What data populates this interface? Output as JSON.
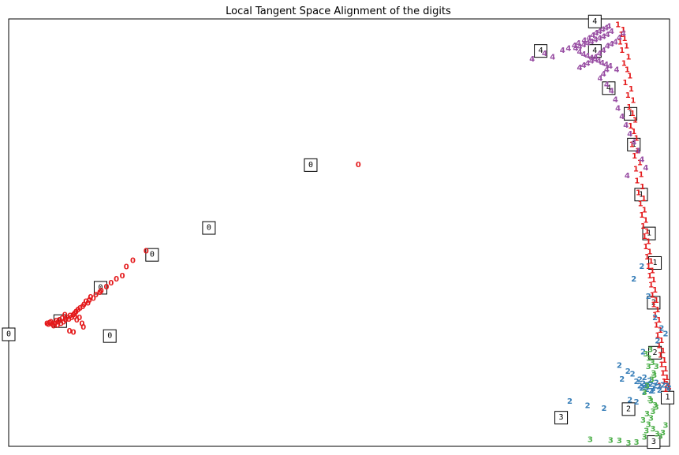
{
  "chart_data": {
    "type": "scatter",
    "title": "Local Tangent Space Alignment of the digits",
    "xlabel": "",
    "ylabel": "",
    "xlim": [
      0,
      1
    ],
    "ylim": [
      0,
      1
    ],
    "ticks": "none",
    "grid": false,
    "legend": "none",
    "marker": "digit-label",
    "series": [
      {
        "label": "0",
        "color": "#e41a1c",
        "x": [
          0.529,
          0.208,
          0.188,
          0.178,
          0.172,
          0.163,
          0.155,
          0.148,
          0.14,
          0.138,
          0.132,
          0.128,
          0.124,
          0.122,
          0.12,
          0.117,
          0.114,
          0.112,
          0.108,
          0.105,
          0.102,
          0.1,
          0.098,
          0.095,
          0.093,
          0.091,
          0.088,
          0.086,
          0.085,
          0.083,
          0.081,
          0.079,
          0.077,
          0.075,
          0.074,
          0.072,
          0.07,
          0.068,
          0.066,
          0.064,
          0.062,
          0.06,
          0.058,
          0.1,
          0.103,
          0.107,
          0.111,
          0.113,
          0.098,
          0.092
        ],
        "y": [
          0.658,
          0.456,
          0.434,
          0.419,
          0.398,
          0.39,
          0.381,
          0.372,
          0.363,
          0.359,
          0.353,
          0.345,
          0.348,
          0.34,
          0.334,
          0.338,
          0.33,
          0.326,
          0.322,
          0.318,
          0.314,
          0.31,
          0.306,
          0.3,
          0.304,
          0.296,
          0.3,
          0.294,
          0.306,
          0.29,
          0.298,
          0.286,
          0.294,
          0.29,
          0.282,
          0.292,
          0.286,
          0.28,
          0.284,
          0.29,
          0.288,
          0.284,
          0.286,
          0.302,
          0.294,
          0.3,
          0.286,
          0.278,
          0.266,
          0.268
        ]
      },
      {
        "label": "1",
        "color": "#e41a1c",
        "x": [
          0.922,
          0.93,
          0.927,
          0.932,
          0.925,
          0.935,
          0.928,
          0.938,
          0.931,
          0.936,
          0.94,
          0.933,
          0.942,
          0.937,
          0.945,
          0.939,
          0.944,
          0.948,
          0.941,
          0.946,
          0.95,
          0.943,
          0.952,
          0.947,
          0.955,
          0.949,
          0.957,
          0.951,
          0.959,
          0.953,
          0.961,
          0.956,
          0.962,
          0.958,
          0.964,
          0.96,
          0.966,
          0.962,
          0.968,
          0.964,
          0.97,
          0.966,
          0.972,
          0.968,
          0.974,
          0.97,
          0.976,
          0.972,
          0.978,
          0.974,
          0.98,
          0.976,
          0.982,
          0.978,
          0.984,
          0.98,
          0.986,
          0.982,
          0.988,
          0.984,
          0.99,
          0.986,
          0.992,
          0.988,
          0.994,
          0.99,
          0.996,
          0.992,
          0.998,
          0.994,
          0.985,
          0.992,
          0.996,
          0.999
        ],
        "y": [
          0.985,
          0.973,
          0.962,
          0.953,
          0.945,
          0.935,
          0.925,
          0.91,
          0.895,
          0.88,
          0.865,
          0.85,
          0.835,
          0.82,
          0.808,
          0.792,
          0.778,
          0.762,
          0.748,
          0.735,
          0.72,
          0.705,
          0.69,
          0.678,
          0.662,
          0.648,
          0.635,
          0.62,
          0.606,
          0.592,
          0.578,
          0.566,
          0.552,
          0.54,
          0.528,
          0.514,
          0.502,
          0.49,
          0.478,
          0.466,
          0.454,
          0.442,
          0.432,
          0.42,
          0.41,
          0.398,
          0.388,
          0.376,
          0.364,
          0.352,
          0.34,
          0.33,
          0.318,
          0.306,
          0.294,
          0.282,
          0.27,
          0.258,
          0.246,
          0.234,
          0.222,
          0.212,
          0.2,
          0.19,
          0.18,
          0.17,
          0.16,
          0.15,
          0.14,
          0.132,
          0.14,
          0.15,
          0.145,
          0.138
        ]
      },
      {
        "label": "2",
        "color": "#377eb8",
        "x": [
          0.849,
          0.876,
          0.901,
          0.924,
          0.937,
          0.928,
          0.944,
          0.95,
          0.955,
          0.958,
          0.962,
          0.966,
          0.972,
          0.978,
          0.984,
          0.99,
          0.996,
          0.999,
          0.985,
          0.975,
          0.968,
          0.96,
          0.955,
          0.962,
          0.97,
          0.98,
          0.975,
          0.94,
          0.95,
          0.962,
          0.966,
          0.972,
          0.958,
          0.946,
          0.968,
          0.978,
          0.988,
          0.994,
          0.982,
          0.96
        ],
        "y": [
          0.104,
          0.094,
          0.088,
          0.188,
          0.174,
          0.156,
          0.168,
          0.15,
          0.14,
          0.135,
          0.14,
          0.142,
          0.144,
          0.14,
          0.138,
          0.142,
          0.14,
          0.136,
          0.13,
          0.134,
          0.138,
          0.146,
          0.155,
          0.16,
          0.152,
          0.148,
          0.128,
          0.107,
          0.102,
          0.126,
          0.132,
          0.128,
          0.42,
          0.39,
          0.35,
          0.3,
          0.275,
          0.262,
          0.245,
          0.22
        ]
      },
      {
        "label": "3",
        "color": "#4daf4a",
        "x": [
          0.88,
          0.911,
          0.924,
          0.938,
          0.95,
          0.962,
          0.965,
          0.968,
          0.972,
          0.975,
          0.978,
          0.97,
          0.962,
          0.966,
          0.973,
          0.977,
          0.98,
          0.974,
          0.969,
          0.964,
          0.971,
          0.976,
          0.968,
          0.96,
          0.975,
          0.981,
          0.986,
          0.99,
          0.994,
          0.98,
          0.972,
          0.966
        ],
        "y": [
          0.015,
          0.013,
          0.012,
          0.006,
          0.008,
          0.02,
          0.035,
          0.05,
          0.065,
          0.08,
          0.095,
          0.11,
          0.125,
          0.14,
          0.155,
          0.165,
          0.185,
          0.195,
          0.205,
          0.215,
          0.225,
          0.17,
          0.185,
          0.06,
          0.04,
          0.028,
          0.022,
          0.03,
          0.048,
          0.09,
          0.105,
          0.075
        ]
      },
      {
        "label": "4",
        "color": "#984ea3",
        "x": [
          0.792,
          0.811,
          0.823,
          0.838,
          0.847,
          0.856,
          0.862,
          0.871,
          0.878,
          0.884,
          0.889,
          0.894,
          0.899,
          0.904,
          0.908,
          0.912,
          0.906,
          0.9,
          0.894,
          0.888,
          0.882,
          0.876,
          0.87,
          0.864,
          0.858,
          0.864,
          0.87,
          0.876,
          0.882,
          0.888,
          0.893,
          0.898,
          0.904,
          0.91,
          0.905,
          0.9,
          0.895,
          0.905,
          0.912,
          0.918,
          0.922,
          0.928,
          0.934,
          0.94,
          0.946,
          0.952,
          0.958,
          0.964,
          0.936,
          0.93,
          0.924,
          0.918,
          0.912,
          0.906,
          0.9,
          0.894,
          0.888,
          0.882,
          0.876,
          0.87,
          0.864,
          0.92
        ],
        "y": [
          0.905,
          0.918,
          0.91,
          0.925,
          0.93,
          0.936,
          0.942,
          0.948,
          0.954,
          0.96,
          0.966,
          0.97,
          0.974,
          0.978,
          0.982,
          0.97,
          0.962,
          0.958,
          0.954,
          0.95,
          0.946,
          0.942,
          0.938,
          0.934,
          0.93,
          0.922,
          0.916,
          0.912,
          0.908,
          0.904,
          0.9,
          0.896,
          0.892,
          0.888,
          0.88,
          0.87,
          0.86,
          0.845,
          0.83,
          0.81,
          0.79,
          0.77,
          0.75,
          0.73,
          0.71,
          0.69,
          0.67,
          0.65,
          0.632,
          0.965,
          0.955,
          0.945,
          0.94,
          0.935,
          0.925,
          0.918,
          0.91,
          0.9,
          0.895,
          0.89,
          0.885,
          0.88
        ]
      }
    ],
    "thumbnails": [
      {
        "digit": "0",
        "x": 0.457,
        "y": 0.658
      },
      {
        "digit": "0",
        "x": 0.303,
        "y": 0.511
      },
      {
        "digit": "0",
        "x": 0.217,
        "y": 0.448
      },
      {
        "digit": "0",
        "x": 0.139,
        "y": 0.371
      },
      {
        "digit": "0",
        "x": 0.078,
        "y": 0.293
      },
      {
        "digit": "0",
        "x": 0.153,
        "y": 0.258
      },
      {
        "digit": "0",
        "x": 0.0,
        "y": 0.262
      },
      {
        "digit": "4",
        "x": 0.887,
        "y": 0.994
      },
      {
        "digit": "4",
        "x": 0.805,
        "y": 0.925
      },
      {
        "digit": "4",
        "x": 0.887,
        "y": 0.925
      },
      {
        "digit": "4",
        "x": 0.908,
        "y": 0.838
      },
      {
        "digit": "1",
        "x": 0.941,
        "y": 0.778
      },
      {
        "digit": "1",
        "x": 0.946,
        "y": 0.706
      },
      {
        "digit": "1",
        "x": 0.957,
        "y": 0.589
      },
      {
        "digit": "1",
        "x": 0.969,
        "y": 0.498
      },
      {
        "digit": "1",
        "x": 0.978,
        "y": 0.429
      },
      {
        "digit": "2",
        "x": 0.976,
        "y": 0.336
      },
      {
        "digit": "2",
        "x": 0.978,
        "y": 0.219
      },
      {
        "digit": "1",
        "x": 0.997,
        "y": 0.114
      },
      {
        "digit": "2",
        "x": 0.938,
        "y": 0.087
      },
      {
        "digit": "3",
        "x": 0.836,
        "y": 0.067
      },
      {
        "digit": "3",
        "x": 0.976,
        "y": 0.01
      }
    ]
  }
}
